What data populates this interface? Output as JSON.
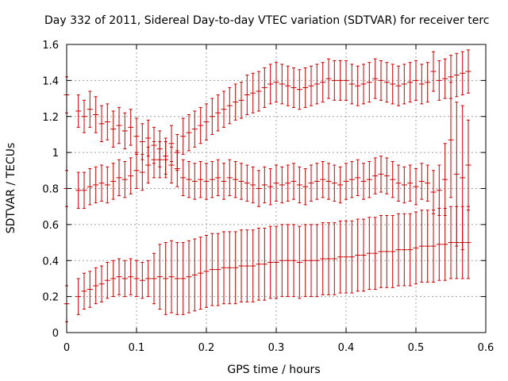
{
  "chart_data": {
    "type": "scatter",
    "style": "error-bars",
    "title": "Day 332 of 2011, Sidereal Day-to-day VTEC variation (SDTVAR) for receiver terc",
    "xlabel": "GPS time / hours",
    "ylabel": "SDTVAR / TECUs",
    "xlim": [
      0,
      0.6
    ],
    "ylim": [
      0,
      1.6
    ],
    "xticks": [
      0,
      0.1,
      0.2,
      0.3,
      0.4,
      0.5,
      0.6
    ],
    "xtick_labels": [
      "0",
      "0.1",
      "0.2",
      "0.3",
      "0.4",
      "0.5",
      "0.6"
    ],
    "yticks": [
      0,
      0.2,
      0.4,
      0.6,
      0.8,
      1,
      1.2,
      1.4,
      1.6
    ],
    "ytick_labels": [
      "0",
      "0.2",
      "0.4",
      "0.6",
      "0.8",
      "1",
      "1.2",
      "1.4",
      "1.6"
    ],
    "grid": true,
    "color": "#cc0000",
    "series": [
      {
        "name": "upper",
        "points": [
          [
            0.0,
            1.32,
            0.1
          ],
          [
            0.0167,
            1.23,
            0.09
          ],
          [
            0.025,
            1.2,
            0.09
          ],
          [
            0.0333,
            1.24,
            0.1
          ],
          [
            0.0417,
            1.21,
            0.1
          ],
          [
            0.05,
            1.16,
            0.1
          ],
          [
            0.0583,
            1.17,
            0.1
          ],
          [
            0.0667,
            1.13,
            0.1
          ],
          [
            0.075,
            1.15,
            0.1
          ],
          [
            0.0833,
            1.12,
            0.1
          ],
          [
            0.0917,
            1.14,
            0.1
          ],
          [
            0.1,
            1.09,
            0.1
          ],
          [
            0.1083,
            1.06,
            0.1
          ],
          [
            0.1167,
            1.08,
            0.1
          ],
          [
            0.125,
            1.04,
            0.1
          ],
          [
            0.1333,
            1.02,
            0.1
          ],
          [
            0.1417,
            0.98,
            0.1
          ],
          [
            0.15,
            1.05,
            0.1
          ],
          [
            0.1583,
            1.0,
            0.1
          ],
          [
            0.1667,
            1.09,
            0.1
          ],
          [
            0.175,
            1.11,
            0.1
          ],
          [
            0.1833,
            1.13,
            0.1
          ],
          [
            0.1917,
            1.15,
            0.1
          ],
          [
            0.2,
            1.17,
            0.1
          ],
          [
            0.2083,
            1.2,
            0.1
          ],
          [
            0.2167,
            1.22,
            0.1
          ],
          [
            0.225,
            1.24,
            0.1
          ],
          [
            0.2333,
            1.26,
            0.1
          ],
          [
            0.2417,
            1.28,
            0.1
          ],
          [
            0.25,
            1.29,
            0.1
          ],
          [
            0.2583,
            1.32,
            0.11
          ],
          [
            0.2667,
            1.33,
            0.11
          ],
          [
            0.275,
            1.34,
            0.11
          ],
          [
            0.2833,
            1.36,
            0.11
          ],
          [
            0.2917,
            1.38,
            0.11
          ],
          [
            0.3,
            1.39,
            0.11
          ],
          [
            0.3083,
            1.38,
            0.11
          ],
          [
            0.3167,
            1.37,
            0.11
          ],
          [
            0.325,
            1.36,
            0.11
          ],
          [
            0.3333,
            1.35,
            0.11
          ],
          [
            0.3417,
            1.36,
            0.11
          ],
          [
            0.35,
            1.37,
            0.11
          ],
          [
            0.3583,
            1.38,
            0.11
          ],
          [
            0.3667,
            1.39,
            0.11
          ],
          [
            0.375,
            1.41,
            0.11
          ],
          [
            0.3833,
            1.4,
            0.11
          ],
          [
            0.3917,
            1.4,
            0.11
          ],
          [
            0.4,
            1.4,
            0.11
          ],
          [
            0.4083,
            1.38,
            0.11
          ],
          [
            0.4167,
            1.37,
            0.11
          ],
          [
            0.425,
            1.38,
            0.11
          ],
          [
            0.4333,
            1.39,
            0.11
          ],
          [
            0.4417,
            1.41,
            0.11
          ],
          [
            0.45,
            1.4,
            0.11
          ],
          [
            0.4583,
            1.39,
            0.11
          ],
          [
            0.4667,
            1.38,
            0.11
          ],
          [
            0.475,
            1.37,
            0.11
          ],
          [
            0.4833,
            1.38,
            0.11
          ],
          [
            0.4917,
            1.39,
            0.11
          ],
          [
            0.5,
            1.4,
            0.11
          ],
          [
            0.5083,
            1.38,
            0.11
          ],
          [
            0.5167,
            1.39,
            0.11
          ],
          [
            0.525,
            1.45,
            0.11
          ],
          [
            0.5333,
            1.4,
            0.11
          ],
          [
            0.5417,
            1.41,
            0.11
          ],
          [
            0.55,
            1.42,
            0.12
          ],
          [
            0.5583,
            1.43,
            0.12
          ],
          [
            0.5667,
            1.44,
            0.12
          ],
          [
            0.575,
            1.45,
            0.12
          ]
        ]
      },
      {
        "name": "middle",
        "points": [
          [
            0.0,
            0.8,
            0.1
          ],
          [
            0.0167,
            0.79,
            0.1
          ],
          [
            0.025,
            0.79,
            0.1
          ],
          [
            0.0333,
            0.81,
            0.1
          ],
          [
            0.0417,
            0.82,
            0.1
          ],
          [
            0.05,
            0.83,
            0.1
          ],
          [
            0.0583,
            0.82,
            0.1
          ],
          [
            0.0667,
            0.84,
            0.1
          ],
          [
            0.075,
            0.86,
            0.1
          ],
          [
            0.0833,
            0.85,
            0.1
          ],
          [
            0.0917,
            0.87,
            0.1
          ],
          [
            0.1,
            0.9,
            0.1
          ],
          [
            0.1083,
            0.89,
            0.1
          ],
          [
            0.1167,
            0.93,
            0.1
          ],
          [
            0.125,
            0.96,
            0.1
          ],
          [
            0.1333,
            0.96,
            0.1
          ],
          [
            0.1417,
            0.96,
            0.1
          ],
          [
            0.15,
            0.93,
            0.1
          ],
          [
            0.1583,
            0.91,
            0.1
          ],
          [
            0.1667,
            0.86,
            0.1
          ],
          [
            0.175,
            0.85,
            0.1
          ],
          [
            0.1833,
            0.84,
            0.1
          ],
          [
            0.1917,
            0.85,
            0.1
          ],
          [
            0.2,
            0.84,
            0.1
          ],
          [
            0.2083,
            0.85,
            0.1
          ],
          [
            0.2167,
            0.86,
            0.1
          ],
          [
            0.225,
            0.84,
            0.1
          ],
          [
            0.2333,
            0.86,
            0.1
          ],
          [
            0.2417,
            0.85,
            0.1
          ],
          [
            0.25,
            0.84,
            0.1
          ],
          [
            0.2583,
            0.83,
            0.1
          ],
          [
            0.2667,
            0.82,
            0.1
          ],
          [
            0.275,
            0.8,
            0.1
          ],
          [
            0.2833,
            0.82,
            0.1
          ],
          [
            0.2917,
            0.81,
            0.1
          ],
          [
            0.3,
            0.83,
            0.1
          ],
          [
            0.3083,
            0.82,
            0.1
          ],
          [
            0.3167,
            0.83,
            0.1
          ],
          [
            0.325,
            0.84,
            0.1
          ],
          [
            0.3333,
            0.82,
            0.1
          ],
          [
            0.3417,
            0.81,
            0.1
          ],
          [
            0.35,
            0.83,
            0.1
          ],
          [
            0.3583,
            0.84,
            0.1
          ],
          [
            0.3667,
            0.85,
            0.1
          ],
          [
            0.375,
            0.84,
            0.1
          ],
          [
            0.3833,
            0.83,
            0.1
          ],
          [
            0.3917,
            0.82,
            0.1
          ],
          [
            0.4,
            0.84,
            0.1
          ],
          [
            0.4083,
            0.85,
            0.1
          ],
          [
            0.4167,
            0.86,
            0.1
          ],
          [
            0.425,
            0.84,
            0.1
          ],
          [
            0.4333,
            0.85,
            0.1
          ],
          [
            0.4417,
            0.87,
            0.1
          ],
          [
            0.45,
            0.88,
            0.1
          ],
          [
            0.4583,
            0.87,
            0.1
          ],
          [
            0.4667,
            0.85,
            0.1
          ],
          [
            0.475,
            0.83,
            0.1
          ],
          [
            0.4833,
            0.82,
            0.1
          ],
          [
            0.4917,
            0.83,
            0.1
          ],
          [
            0.5,
            0.81,
            0.1
          ],
          [
            0.5083,
            0.84,
            0.1
          ],
          [
            0.5167,
            0.83,
            0.1
          ],
          [
            0.525,
            0.78,
            0.12
          ],
          [
            0.5333,
            0.79,
            0.14
          ],
          [
            0.5417,
            0.85,
            0.2
          ],
          [
            0.55,
            1.07,
            0.32
          ],
          [
            0.5583,
            0.88,
            0.4
          ],
          [
            0.5667,
            0.86,
            0.4
          ],
          [
            0.575,
            0.93,
            0.25
          ]
        ]
      },
      {
        "name": "lower",
        "points": [
          [
            0.0,
            0.16,
            0.1
          ],
          [
            0.0167,
            0.2,
            0.1
          ],
          [
            0.025,
            0.23,
            0.1
          ],
          [
            0.0333,
            0.24,
            0.1
          ],
          [
            0.0417,
            0.26,
            0.1
          ],
          [
            0.05,
            0.27,
            0.1
          ],
          [
            0.0583,
            0.29,
            0.1
          ],
          [
            0.0667,
            0.3,
            0.1
          ],
          [
            0.075,
            0.31,
            0.1
          ],
          [
            0.0833,
            0.3,
            0.1
          ],
          [
            0.0917,
            0.31,
            0.1
          ],
          [
            0.1,
            0.3,
            0.1
          ],
          [
            0.1083,
            0.29,
            0.1
          ],
          [
            0.1167,
            0.3,
            0.1
          ],
          [
            0.125,
            0.3,
            0.14
          ],
          [
            0.1333,
            0.31,
            0.18
          ],
          [
            0.1417,
            0.3,
            0.2
          ],
          [
            0.15,
            0.31,
            0.2
          ],
          [
            0.1583,
            0.3,
            0.2
          ],
          [
            0.1667,
            0.3,
            0.2
          ],
          [
            0.175,
            0.31,
            0.2
          ],
          [
            0.1833,
            0.32,
            0.2
          ],
          [
            0.1917,
            0.33,
            0.2
          ],
          [
            0.2,
            0.34,
            0.2
          ],
          [
            0.2083,
            0.35,
            0.2
          ],
          [
            0.2167,
            0.35,
            0.2
          ],
          [
            0.225,
            0.36,
            0.2
          ],
          [
            0.2333,
            0.36,
            0.2
          ],
          [
            0.2417,
            0.36,
            0.2
          ],
          [
            0.25,
            0.37,
            0.2
          ],
          [
            0.2583,
            0.37,
            0.2
          ],
          [
            0.2667,
            0.37,
            0.2
          ],
          [
            0.275,
            0.38,
            0.2
          ],
          [
            0.2833,
            0.38,
            0.2
          ],
          [
            0.2917,
            0.39,
            0.2
          ],
          [
            0.3,
            0.39,
            0.2
          ],
          [
            0.3083,
            0.4,
            0.2
          ],
          [
            0.3167,
            0.4,
            0.2
          ],
          [
            0.325,
            0.4,
            0.2
          ],
          [
            0.3333,
            0.39,
            0.2
          ],
          [
            0.3417,
            0.4,
            0.2
          ],
          [
            0.35,
            0.4,
            0.2
          ],
          [
            0.3583,
            0.4,
            0.2
          ],
          [
            0.3667,
            0.41,
            0.2
          ],
          [
            0.375,
            0.41,
            0.2
          ],
          [
            0.3833,
            0.41,
            0.2
          ],
          [
            0.3917,
            0.42,
            0.2
          ],
          [
            0.4,
            0.42,
            0.2
          ],
          [
            0.4083,
            0.42,
            0.2
          ],
          [
            0.4167,
            0.43,
            0.2
          ],
          [
            0.425,
            0.43,
            0.2
          ],
          [
            0.4333,
            0.44,
            0.2
          ],
          [
            0.4417,
            0.44,
            0.2
          ],
          [
            0.45,
            0.45,
            0.2
          ],
          [
            0.4583,
            0.45,
            0.2
          ],
          [
            0.4667,
            0.45,
            0.2
          ],
          [
            0.475,
            0.46,
            0.2
          ],
          [
            0.4833,
            0.46,
            0.2
          ],
          [
            0.4917,
            0.46,
            0.2
          ],
          [
            0.5,
            0.47,
            0.2
          ],
          [
            0.5083,
            0.48,
            0.2
          ],
          [
            0.5167,
            0.48,
            0.2
          ],
          [
            0.525,
            0.48,
            0.2
          ],
          [
            0.5333,
            0.49,
            0.2
          ],
          [
            0.5417,
            0.49,
            0.2
          ],
          [
            0.55,
            0.5,
            0.2
          ],
          [
            0.5583,
            0.5,
            0.2
          ],
          [
            0.5667,
            0.5,
            0.2
          ],
          [
            0.575,
            0.5,
            0.2
          ]
        ]
      }
    ]
  }
}
